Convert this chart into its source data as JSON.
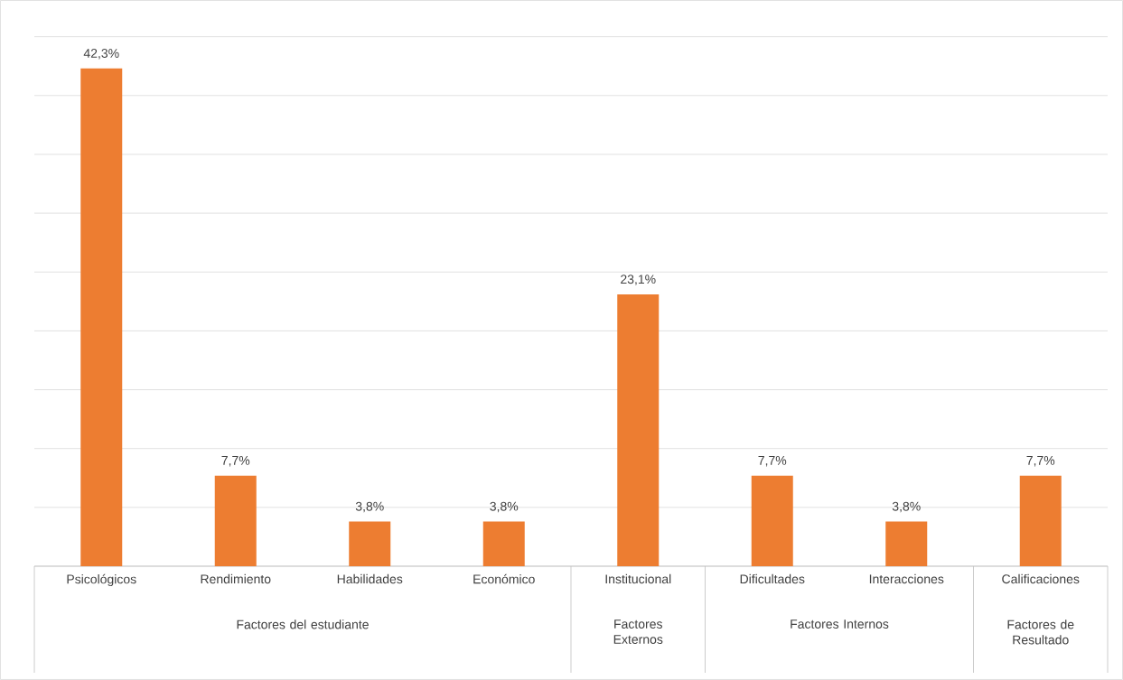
{
  "chart_data": {
    "type": "bar",
    "categories": [
      "Psicológicos",
      "Rendimiento",
      "Habilidades",
      "Económico",
      "Institucional",
      "Dificultades",
      "Interacciones",
      "Calificaciones"
    ],
    "values": [
      42.3,
      7.7,
      3.8,
      3.8,
      23.1,
      7.7,
      3.8,
      7.7
    ],
    "value_labels": [
      "42,3%",
      "7,7%",
      "3,8%",
      "3,8%",
      "23,1%",
      "7,7%",
      "3,8%",
      "7,7%"
    ],
    "color": "#ed7d31",
    "grid": "y",
    "tick_labels": "x",
    "annotations": [
      "Factores del estudiante",
      "Factores Externos",
      "Factores Internos",
      "Factores de Resultado"
    ]
  }
}
